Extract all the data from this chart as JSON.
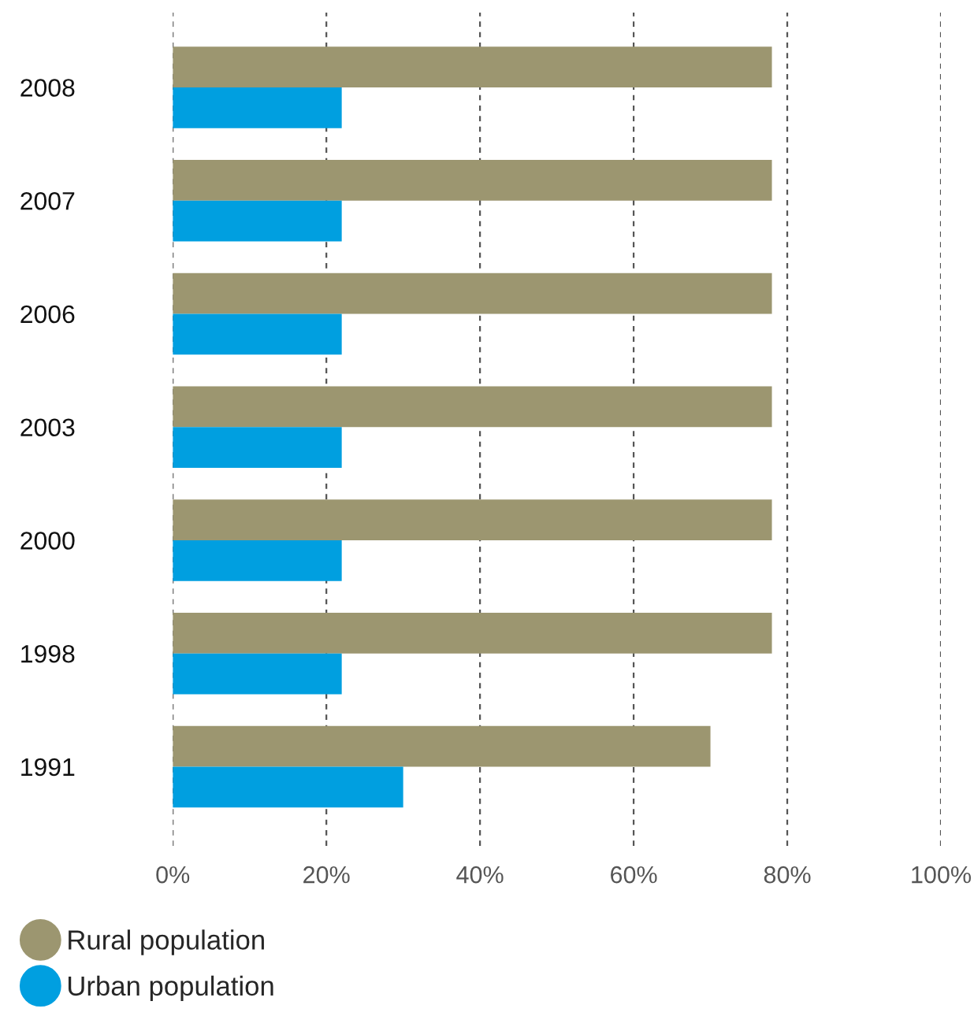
{
  "chart_data": {
    "type": "bar",
    "orientation": "horizontal",
    "categories": [
      "2008",
      "2007",
      "2006",
      "2003",
      "2000",
      "1998",
      "1991"
    ],
    "series": [
      {
        "name": "Rural population",
        "color": "#9c9670",
        "values": [
          78,
          78,
          78,
          78,
          78,
          78,
          70
        ]
      },
      {
        "name": "Urban population",
        "color": "#009fe0",
        "values": [
          22,
          22,
          22,
          22,
          22,
          22,
          30
        ]
      }
    ],
    "xlim": [
      0,
      100
    ],
    "xticks": [
      {
        "value": 0,
        "label": "0%"
      },
      {
        "value": 20,
        "label": "20%"
      },
      {
        "value": 40,
        "label": "40%"
      },
      {
        "value": 60,
        "label": "60%"
      },
      {
        "value": 80,
        "label": "80%"
      },
      {
        "value": 100,
        "label": "100%"
      }
    ],
    "grid": "x",
    "legend": "bottom left"
  }
}
